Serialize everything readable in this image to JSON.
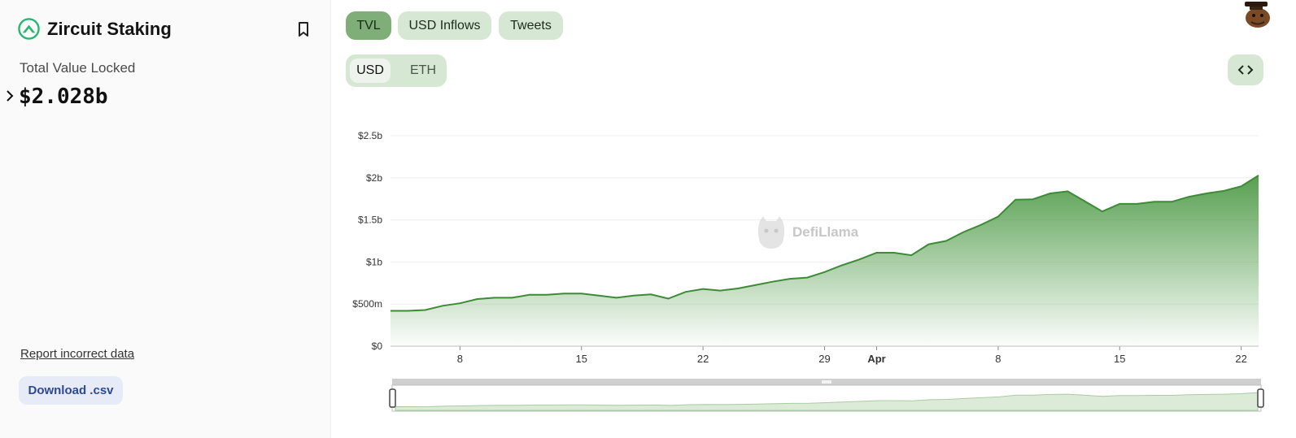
{
  "sidebar": {
    "protocol_name": "Zircuit Staking",
    "tvl_label": "Total Value Locked",
    "tvl_value": "$2.028b",
    "report_link": "Report incorrect data",
    "download_label": "Download .csv"
  },
  "tabs": [
    {
      "label": "TVL",
      "active": true
    },
    {
      "label": "USD Inflows",
      "active": false
    },
    {
      "label": "Tweets",
      "active": false
    }
  ],
  "units": [
    {
      "label": "USD",
      "active": true
    },
    {
      "label": "ETH",
      "active": false
    }
  ],
  "watermark": "DefiLlama",
  "colors": {
    "accent": "#3d8b37",
    "area_top": "#4e9a47",
    "tab_bg": "#d6e8d3",
    "tab_active": "#7fae78"
  },
  "chart_data": {
    "type": "area",
    "ylim": [
      0,
      2500000000
    ],
    "y_ticks": [
      {
        "v": 0,
        "label": "$0"
      },
      {
        "v": 500000000,
        "label": "$500m"
      },
      {
        "v": 1000000000,
        "label": "$1b"
      },
      {
        "v": 1500000000,
        "label": "$1.5b"
      },
      {
        "v": 2000000000,
        "label": "$2b"
      },
      {
        "v": 2500000000,
        "label": "$2.5b"
      }
    ],
    "x_ticks": [
      {
        "day": 4,
        "label": "8",
        "bold": false
      },
      {
        "day": 11,
        "label": "15",
        "bold": false
      },
      {
        "day": 18,
        "label": "22",
        "bold": false
      },
      {
        "day": 25,
        "label": "29",
        "bold": false
      },
      {
        "day": 28,
        "label": "Apr",
        "bold": true
      },
      {
        "day": 35,
        "label": "8",
        "bold": false
      },
      {
        "day": 42,
        "label": "15",
        "bold": false
      },
      {
        "day": 49,
        "label": "22",
        "bold": false
      }
    ],
    "x_range": [
      0,
      50
    ],
    "series": [
      {
        "days": [
          0,
          1,
          2,
          3,
          4,
          5,
          6,
          7,
          8,
          9,
          10,
          11,
          12,
          13,
          14,
          15,
          16,
          17,
          18,
          19,
          20,
          21,
          22,
          23,
          24,
          25,
          26,
          27,
          28,
          29,
          30,
          31,
          32,
          33,
          34,
          35,
          36,
          37,
          38,
          39,
          40,
          41,
          42,
          43,
          44,
          45,
          46,
          47,
          48,
          49,
          50
        ],
        "values": [
          420000000,
          420000000,
          430000000,
          480000000,
          510000000,
          560000000,
          575000000,
          575000000,
          610000000,
          610000000,
          625000000,
          625000000,
          600000000,
          575000000,
          600000000,
          615000000,
          565000000,
          645000000,
          680000000,
          660000000,
          685000000,
          725000000,
          765000000,
          800000000,
          815000000,
          880000000,
          960000000,
          1030000000,
          1110000000,
          1110000000,
          1080000000,
          1210000000,
          1250000000,
          1355000000,
          1440000000,
          1540000000,
          1740000000,
          1745000000,
          1815000000,
          1840000000,
          1720000000,
          1600000000,
          1690000000,
          1690000000,
          1715000000,
          1715000000,
          1775000000,
          1815000000,
          1845000000,
          1900000000,
          2028000000
        ]
      }
    ]
  }
}
